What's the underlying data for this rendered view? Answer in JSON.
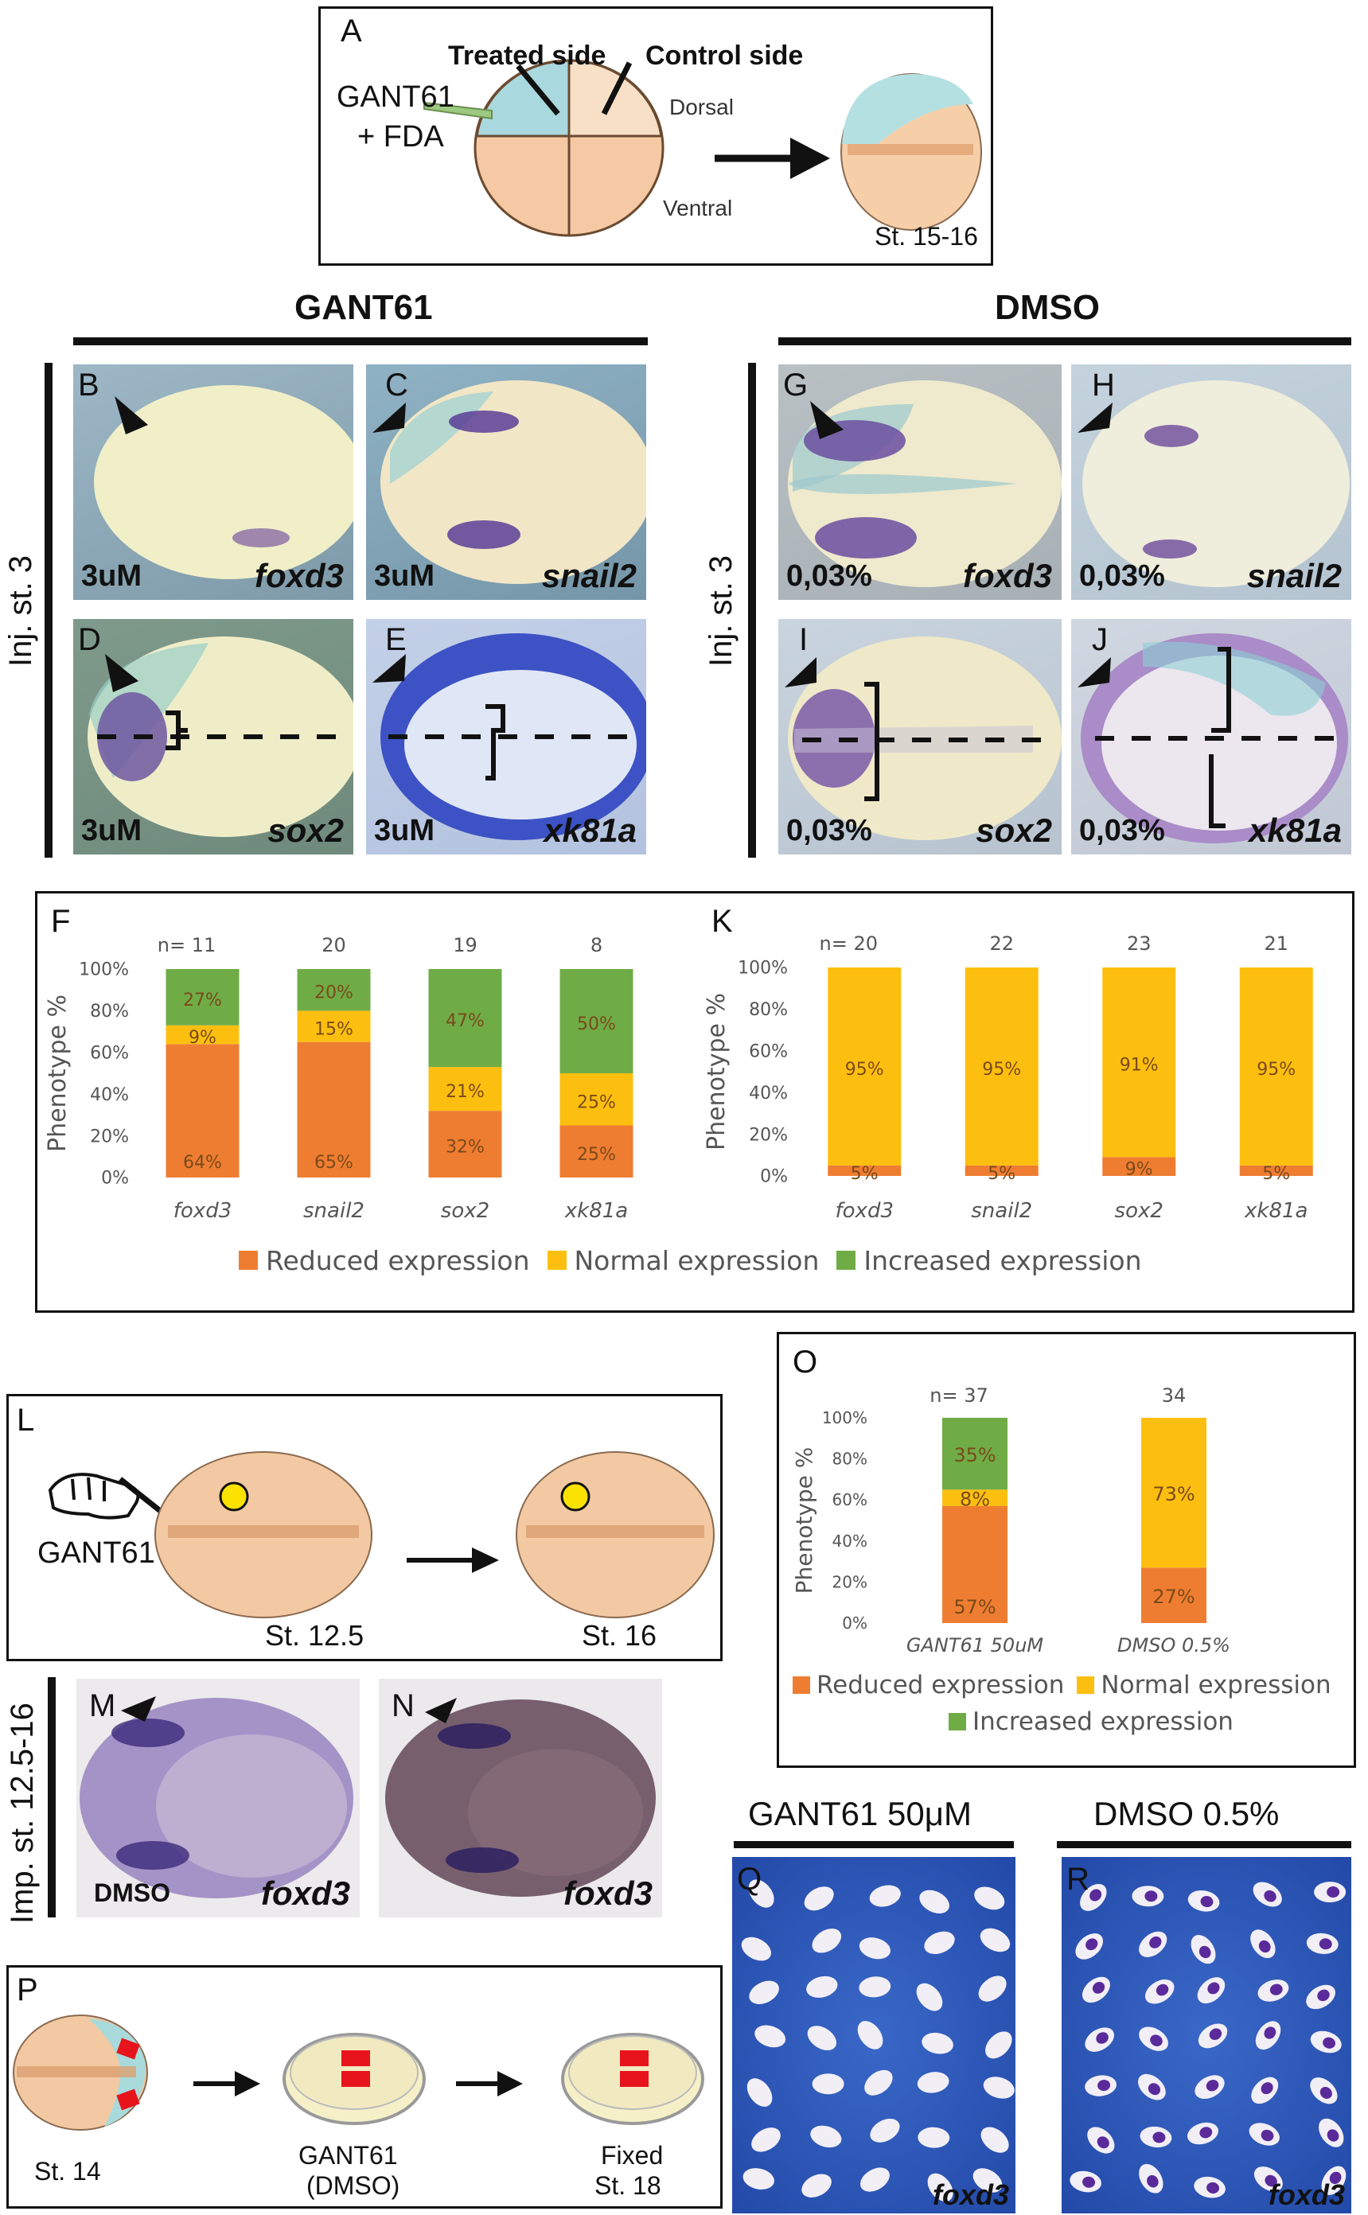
{
  "panel_a": {
    "letter": "A",
    "treated": "Treated side",
    "control": "Control side",
    "drug1": "GANT61",
    "drug2": "+ FDA",
    "dorsal": "Dorsal",
    "ventral": "Ventral",
    "stage": "St. 15-16"
  },
  "headers": {
    "gant": "GANT61",
    "dmso": "DMSO",
    "inj_left": "Inj. st. 3",
    "inj_right": "Inj. st. 3",
    "imp": "Imp. st. 12.5-16"
  },
  "photos": {
    "B": {
      "letter": "B",
      "dose": "3uM",
      "gene": "foxd3"
    },
    "C": {
      "letter": "C",
      "dose": "3uM",
      "gene": "snail2"
    },
    "D": {
      "letter": "D",
      "dose": "3uM",
      "gene": "sox2"
    },
    "E": {
      "letter": "E",
      "dose": "3uM",
      "gene": "xk81a"
    },
    "G": {
      "letter": "G",
      "dose": "0,03%",
      "gene": "foxd3"
    },
    "H": {
      "letter": "H",
      "dose": "0,03%",
      "gene": "snail2"
    },
    "I": {
      "letter": "I",
      "dose": "0,03%",
      "gene": "sox2"
    },
    "J": {
      "letter": "J",
      "dose": "0,03%",
      "gene": "xk81a"
    },
    "M": {
      "letter": "M",
      "dose": "DMSO",
      "gene": "foxd3"
    },
    "N": {
      "letter": "N",
      "gene": "foxd3"
    },
    "Q": {
      "letter": "Q",
      "gene": "foxd3"
    },
    "R": {
      "letter": "R",
      "gene": "foxd3"
    }
  },
  "colors": {
    "reduced": "#ef7d31",
    "normal": "#fdbf0f",
    "increased": "#6fac46"
  },
  "chart_data": [
    {
      "panel": "F",
      "type": "bar",
      "stacked": true,
      "ylabel": "Phenotype %",
      "ylim": [
        0,
        100
      ],
      "yticks": [
        "0%",
        "20%",
        "40%",
        "60%",
        "80%",
        "100%"
      ],
      "categories": [
        "foxd3",
        "snail2",
        "sox2",
        "xk81a"
      ],
      "n_prefix": "n=",
      "n": [
        "11",
        "20",
        "19",
        "8"
      ],
      "series": [
        {
          "name": "Reduced expression",
          "values": [
            64,
            65,
            32,
            25
          ],
          "labels": [
            "64%",
            "65%",
            "32%",
            "25%"
          ]
        },
        {
          "name": "Normal expression",
          "values": [
            9,
            15,
            21,
            25
          ],
          "labels": [
            "9%",
            "15%",
            "21%",
            "25%"
          ]
        },
        {
          "name": "Increased expression",
          "values": [
            27,
            20,
            47,
            50
          ],
          "labels": [
            "27%",
            "20%",
            "47%",
            "50%"
          ]
        }
      ]
    },
    {
      "panel": "K",
      "type": "bar",
      "stacked": true,
      "ylabel": "Phenotype %",
      "ylim": [
        0,
        100
      ],
      "yticks": [
        "0%",
        "20%",
        "40%",
        "60%",
        "80%",
        "100%"
      ],
      "categories": [
        "foxd3",
        "snail2",
        "sox2",
        "xk81a"
      ],
      "n_prefix": "n=",
      "n": [
        "20",
        "22",
        "23",
        "21"
      ],
      "series": [
        {
          "name": "Reduced expression",
          "values": [
            5,
            5,
            9,
            5
          ],
          "labels": [
            "5%",
            "5%",
            "9%",
            "5%"
          ]
        },
        {
          "name": "Normal expression",
          "values": [
            95,
            95,
            91,
            95
          ],
          "labels": [
            "95%",
            "95%",
            "91%",
            "95%"
          ]
        },
        {
          "name": "Increased expression",
          "values": [
            0,
            0,
            0,
            0
          ],
          "labels": [
            "",
            "",
            "",
            ""
          ]
        }
      ]
    },
    {
      "panel": "O",
      "type": "bar",
      "stacked": true,
      "ylabel": "Phenotype %",
      "ylim": [
        0,
        100
      ],
      "yticks": [
        "0%",
        "20%",
        "40%",
        "60%",
        "80%",
        "100%"
      ],
      "categories": [
        "GANT61 50uM",
        "DMSO 0.5%"
      ],
      "n_prefix": "n=",
      "n": [
        "37",
        "34"
      ],
      "series": [
        {
          "name": "Reduced expression",
          "values": [
            57,
            27
          ],
          "labels": [
            "57%",
            "27%"
          ]
        },
        {
          "name": "Normal expression",
          "values": [
            8,
            73
          ],
          "labels": [
            "8%",
            "73%"
          ]
        },
        {
          "name": "Increased expression",
          "values": [
            35,
            0
          ],
          "labels": [
            "35%",
            ""
          ]
        }
      ]
    }
  ],
  "panel_fk_letters": {
    "F": "F",
    "K": "K",
    "O": "O"
  },
  "legend": {
    "reduced": "Reduced expression",
    "normal": "Normal expression",
    "increased": "Increased expression"
  },
  "panel_l": {
    "letter": "L",
    "drug": "GANT61",
    "st1": "St. 12.5",
    "st2": "St. 16"
  },
  "panel_p": {
    "letter": "P",
    "st": "St. 14",
    "drug1": "GANT61",
    "drug2": "(DMSO)",
    "fixed1": "Fixed",
    "fixed2": "St. 18"
  },
  "panel_qr": {
    "gant": "GANT61 50μM",
    "dmso": "DMSO 0.5%"
  }
}
